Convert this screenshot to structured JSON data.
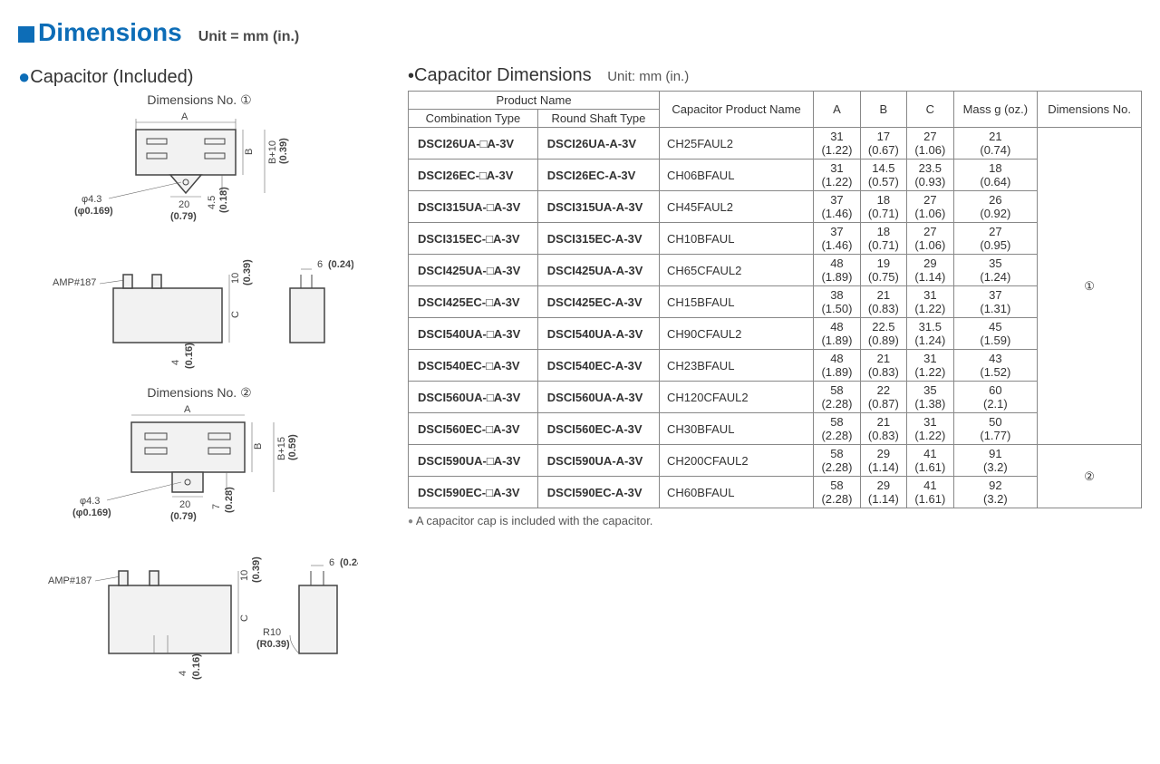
{
  "header": {
    "title": "Dimensions",
    "unit": "Unit = mm (in.)"
  },
  "left": {
    "subhead": "Capacitor (Included)",
    "dim1_label": "Dimensions No. ①",
    "dim2_label": "Dimensions No. ②",
    "amp_label": "AMP#187",
    "phi": "φ4.3",
    "phi_in": "(φ0.169)",
    "d20": "20",
    "d20_in": "(0.79)",
    "d4_5": "4.5",
    "d4_5_in": "(0.18)",
    "b10": "B+10",
    "b10_in": "(0.39)",
    "d10": "10",
    "d10_in": "(0.39)",
    "d6": "6",
    "d6_in": "(0.24)",
    "d4": "4",
    "d4_in": "(0.16)",
    "d7": "7",
    "d7_in": "(0.28)",
    "b15": "B+15",
    "b15_in": "(0.59)",
    "r10": "R10",
    "r10_in": "(R0.39)"
  },
  "right": {
    "subhead": "Capacitor Dimensions",
    "unit": "Unit: mm (in.)",
    "headers": {
      "pn": "Product Name",
      "combo": "Combination Type",
      "round": "Round Shaft Type",
      "cap": "Capacitor Product Name",
      "a": "A",
      "b": "B",
      "c": "C",
      "mass": "Mass g (oz.)",
      "dimno": "Dimensions No."
    },
    "rows": [
      {
        "combo": "DSCI26UA-□A-3V",
        "round": "DSCI26UA-A-3V",
        "cap": "CH25FAUL2",
        "a": "31",
        "ai": "(1.22)",
        "b": "17",
        "bi": "(0.67)",
        "c": "27",
        "ci": "(1.06)",
        "m": "21",
        "mi": "(0.74)"
      },
      {
        "combo": "DSCI26EC-□A-3V",
        "round": "DSCI26EC-A-3V",
        "cap": "CH06BFAUL",
        "a": "31",
        "ai": "(1.22)",
        "b": "14.5",
        "bi": "(0.57)",
        "c": "23.5",
        "ci": "(0.93)",
        "m": "18",
        "mi": "(0.64)"
      },
      {
        "combo": "DSCI315UA-□A-3V",
        "round": "DSCI315UA-A-3V",
        "cap": "CH45FAUL2",
        "a": "37",
        "ai": "(1.46)",
        "b": "18",
        "bi": "(0.71)",
        "c": "27",
        "ci": "(1.06)",
        "m": "26",
        "mi": "(0.92)"
      },
      {
        "combo": "DSCI315EC-□A-3V",
        "round": "DSCI315EC-A-3V",
        "cap": "CH10BFAUL",
        "a": "37",
        "ai": "(1.46)",
        "b": "18",
        "bi": "(0.71)",
        "c": "27",
        "ci": "(1.06)",
        "m": "27",
        "mi": "(0.95)"
      },
      {
        "combo": "DSCI425UA-□A-3V",
        "round": "DSCI425UA-A-3V",
        "cap": "CH65CFAUL2",
        "a": "48",
        "ai": "(1.89)",
        "b": "19",
        "bi": "(0.75)",
        "c": "29",
        "ci": "(1.14)",
        "m": "35",
        "mi": "(1.24)"
      },
      {
        "combo": "DSCI425EC-□A-3V",
        "round": "DSCI425EC-A-3V",
        "cap": "CH15BFAUL",
        "a": "38",
        "ai": "(1.50)",
        "b": "21",
        "bi": "(0.83)",
        "c": "31",
        "ci": "(1.22)",
        "m": "37",
        "mi": "(1.31)"
      },
      {
        "combo": "DSCI540UA-□A-3V",
        "round": "DSCI540UA-A-3V",
        "cap": "CH90CFAUL2",
        "a": "48",
        "ai": "(1.89)",
        "b": "22.5",
        "bi": "(0.89)",
        "c": "31.5",
        "ci": "(1.24)",
        "m": "45",
        "mi": "(1.59)"
      },
      {
        "combo": "DSCI540EC-□A-3V",
        "round": "DSCI540EC-A-3V",
        "cap": "CH23BFAUL",
        "a": "48",
        "ai": "(1.89)",
        "b": "21",
        "bi": "(0.83)",
        "c": "31",
        "ci": "(1.22)",
        "m": "43",
        "mi": "(1.52)"
      },
      {
        "combo": "DSCI560UA-□A-3V",
        "round": "DSCI560UA-A-3V",
        "cap": "CH120CFAUL2",
        "a": "58",
        "ai": "(2.28)",
        "b": "22",
        "bi": "(0.87)",
        "c": "35",
        "ci": "(1.38)",
        "m": "60",
        "mi": "(2.1)"
      },
      {
        "combo": "DSCI560EC-□A-3V",
        "round": "DSCI560EC-A-3V",
        "cap": "CH30BFAUL",
        "a": "58",
        "ai": "(2.28)",
        "b": "21",
        "bi": "(0.83)",
        "c": "31",
        "ci": "(1.22)",
        "m": "50",
        "mi": "(1.77)"
      },
      {
        "combo": "DSCI590UA-□A-3V",
        "round": "DSCI590UA-A-3V",
        "cap": "CH200CFAUL2",
        "a": "58",
        "ai": "(2.28)",
        "b": "29",
        "bi": "(1.14)",
        "c": "41",
        "ci": "(1.61)",
        "m": "91",
        "mi": "(3.2)"
      },
      {
        "combo": "DSCI590EC-□A-3V",
        "round": "DSCI590EC-A-3V",
        "cap": "CH60BFAUL",
        "a": "58",
        "ai": "(2.28)",
        "b": "29",
        "bi": "(1.14)",
        "c": "41",
        "ci": "(1.61)",
        "m": "92",
        "mi": "(3.2)"
      }
    ],
    "group1": "①",
    "group2": "②",
    "footnote": "A capacitor cap is included with the capacitor."
  }
}
